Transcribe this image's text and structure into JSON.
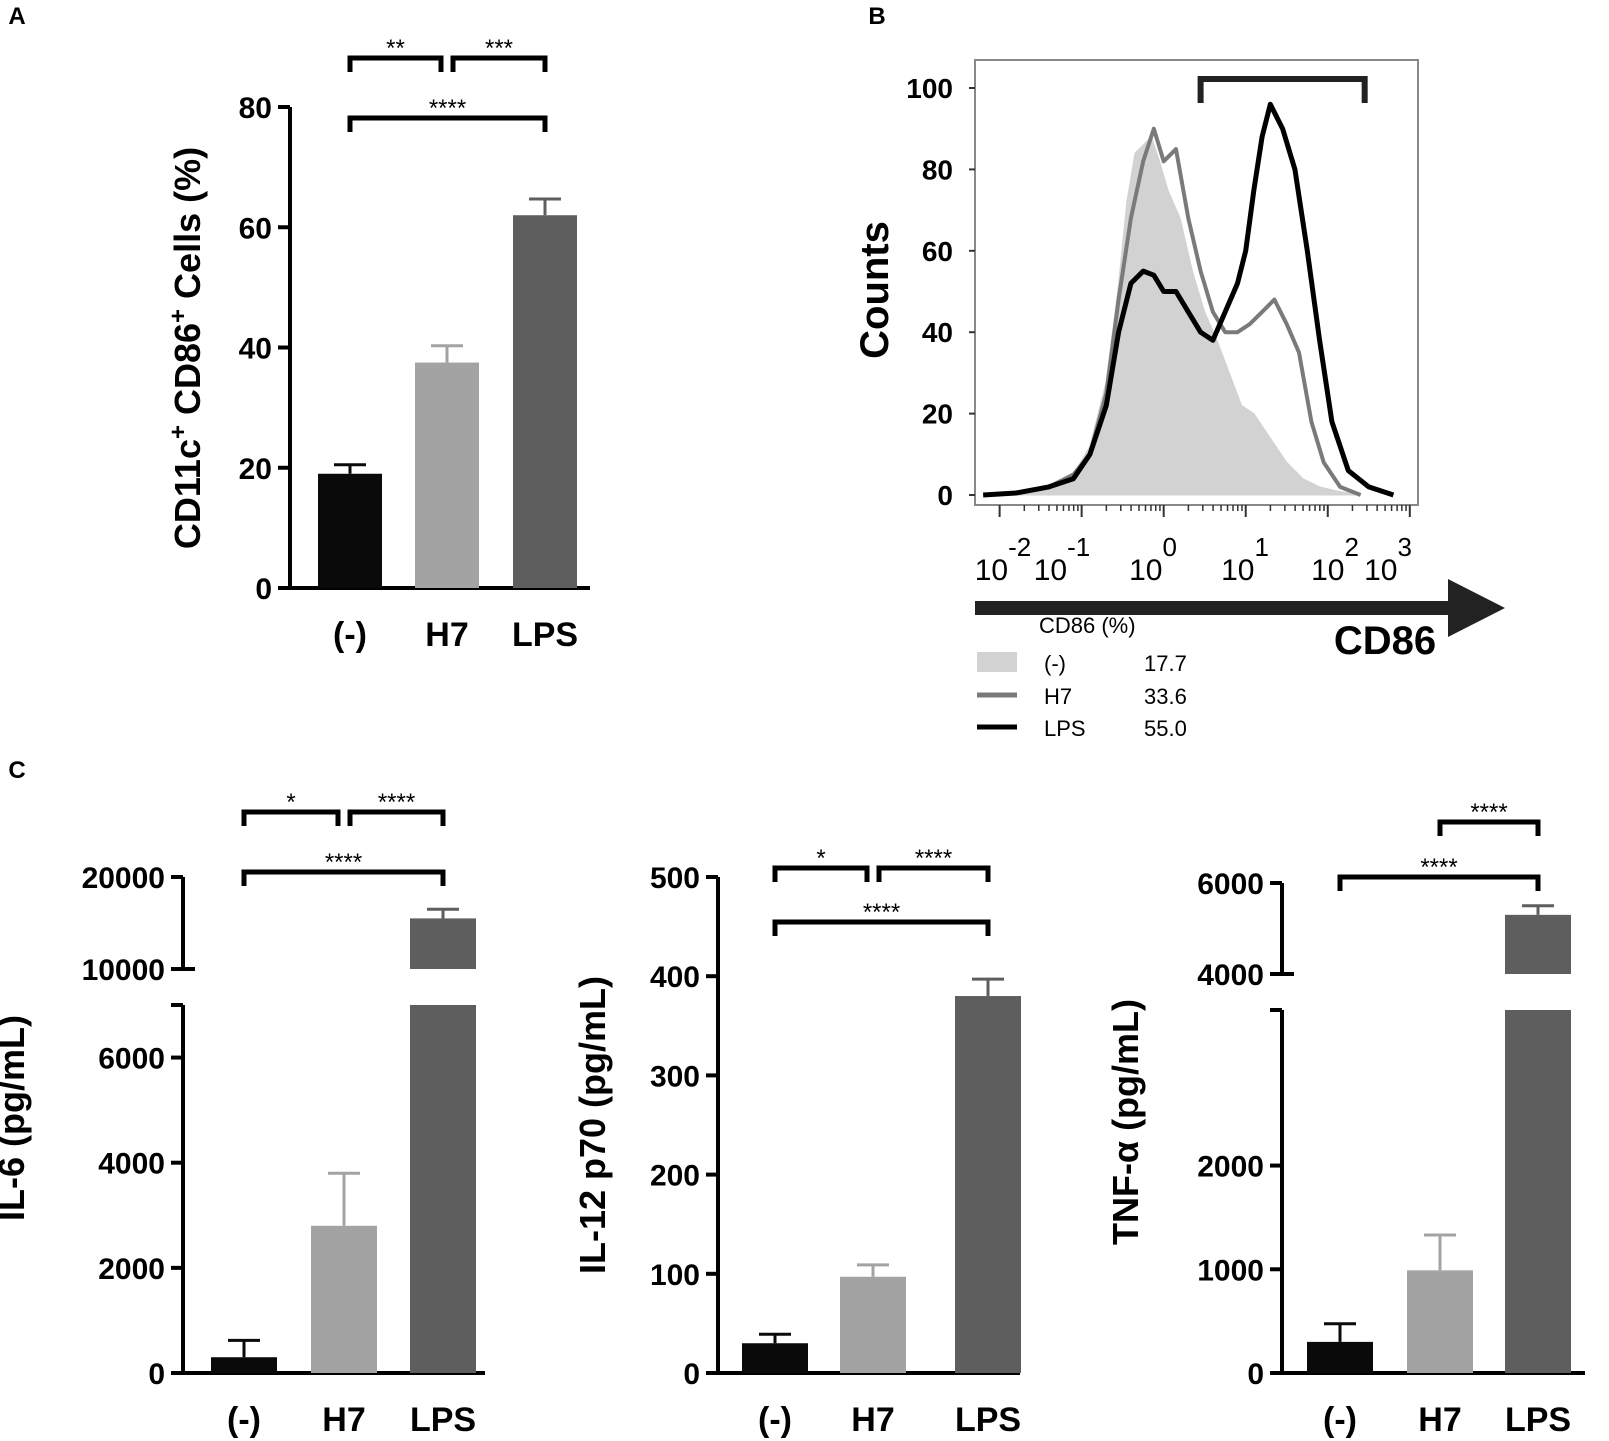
{
  "figure": {
    "title": ""
  },
  "colors": {
    "neg": "#0a0a0a",
    "h7": "#a3a3a3",
    "lps": "#5e5e5e",
    "fill_neg": "#d2d2d2",
    "axis": "#111111"
  },
  "chart_data": [
    {
      "panel": "A",
      "type": "bar",
      "title": "",
      "xlabel": "",
      "ylabel_parts": {
        "a": "CD11c",
        "a_sup": "+",
        "b": " CD86",
        "b_sup": "+",
        "c": " Cells (%)"
      },
      "categories": [
        "(-)",
        "H7",
        "LPS"
      ],
      "values": [
        19,
        37.5,
        62
      ],
      "errors": [
        1.5,
        2.8,
        2.7
      ],
      "ylim": [
        0,
        80
      ],
      "yticks": [
        0,
        20,
        40,
        60,
        80
      ],
      "ytick_labels": [
        "0",
        "20",
        "40",
        "60",
        "80"
      ],
      "significance": [
        {
          "from": 0,
          "to": 1,
          "label": "**",
          "level": 1
        },
        {
          "from": 1,
          "to": 2,
          "label": "***",
          "level": 1
        },
        {
          "from": 0,
          "to": 2,
          "label": "****",
          "level": 0
        }
      ]
    },
    {
      "panel": "B",
      "type": "line",
      "title": "",
      "xlabel": "CD86",
      "ylabel": "Counts",
      "x_scale": "log10",
      "xlim": [
        -2.3,
        3.1
      ],
      "ylim": [
        0,
        100
      ],
      "yticks": [
        0,
        20,
        40,
        60,
        80,
        100
      ],
      "ytick_labels": [
        "0",
        "20",
        "40",
        "60",
        "80",
        "100"
      ],
      "xtick_base": "10",
      "xtick_exponents": [
        "-2",
        "-1",
        "0",
        "1",
        "2",
        "3"
      ],
      "gate": {
        "x_start": 0.45,
        "x_end": 2.45,
        "label": ""
      },
      "legend_header": "CD86 (%)",
      "legend": [
        {
          "label": "(-)",
          "value": "17.7",
          "style": "filled"
        },
        {
          "label": "H7",
          "value": "33.6",
          "style": "gray-line"
        },
        {
          "label": "LPS",
          "value": "55.0",
          "style": "black-line"
        }
      ],
      "series": [
        {
          "name": "(-)",
          "x": [
            -2.2,
            -1.8,
            -1.4,
            -1.1,
            -0.9,
            -0.7,
            -0.55,
            -0.45,
            -0.35,
            -0.25,
            -0.15,
            -0.05,
            0.05,
            0.2,
            0.35,
            0.5,
            0.65,
            0.8,
            0.95,
            1.1,
            1.3,
            1.5,
            1.7,
            1.9,
            2.1,
            2.4
          ],
          "values": [
            0,
            0.5,
            2,
            5,
            12,
            28,
            52,
            72,
            84,
            86,
            88,
            82,
            75,
            68,
            55,
            45,
            38,
            30,
            22,
            20,
            14,
            8,
            4,
            2,
            1,
            0
          ]
        },
        {
          "name": "H7",
          "x": [
            -2.2,
            -1.8,
            -1.4,
            -1.1,
            -0.9,
            -0.7,
            -0.55,
            -0.4,
            -0.25,
            -0.12,
            0.0,
            0.15,
            0.3,
            0.45,
            0.6,
            0.75,
            0.9,
            1.05,
            1.2,
            1.35,
            1.5,
            1.65,
            1.8,
            1.95,
            2.15,
            2.4
          ],
          "values": [
            0,
            0.5,
            2,
            5,
            10,
            25,
            48,
            68,
            82,
            90,
            82,
            85,
            68,
            55,
            45,
            40,
            40,
            42,
            45,
            48,
            42,
            35,
            18,
            8,
            2,
            0
          ]
        },
        {
          "name": "LPS",
          "x": [
            -2.2,
            -1.8,
            -1.4,
            -1.1,
            -0.9,
            -0.7,
            -0.55,
            -0.4,
            -0.25,
            -0.12,
            0.0,
            0.15,
            0.3,
            0.45,
            0.6,
            0.75,
            0.9,
            1.0,
            1.1,
            1.2,
            1.3,
            1.45,
            1.6,
            1.75,
            1.9,
            2.05,
            2.25,
            2.5,
            2.8
          ],
          "values": [
            0,
            0.5,
            2,
            4,
            10,
            22,
            40,
            52,
            55,
            54,
            50,
            50,
            45,
            40,
            38,
            45,
            52,
            60,
            75,
            88,
            96,
            90,
            80,
            60,
            38,
            18,
            6,
            2,
            0
          ]
        }
      ]
    },
    {
      "panel": "C1",
      "type": "bar",
      "title": "",
      "xlabel": "",
      "ylabel": "IL-6 (pg/mL)",
      "categories": [
        "(-)",
        "H7",
        "LPS"
      ],
      "values": [
        300,
        2800,
        15500
      ],
      "errors": [
        320,
        1000,
        1000
      ],
      "broken_axis": true,
      "lower_range": [
        0,
        7000
      ],
      "upper_range": [
        10000,
        20000
      ],
      "yticks_lower": [
        0,
        2000,
        4000,
        6000
      ],
      "ytick_labels_lower": [
        "0",
        "2000",
        "4000",
        "6000"
      ],
      "yticks_upper": [
        10000,
        20000
      ],
      "ytick_labels_upper": [
        "10000",
        "20000"
      ],
      "significance": [
        {
          "from": 0,
          "to": 1,
          "label": "*",
          "level": 1
        },
        {
          "from": 1,
          "to": 2,
          "label": "****",
          "level": 1
        },
        {
          "from": 0,
          "to": 2,
          "label": "****",
          "level": 0
        }
      ]
    },
    {
      "panel": "C2",
      "type": "bar",
      "title": "",
      "xlabel": "",
      "ylabel": "IL-12 p70 (pg/mL)",
      "categories": [
        "(-)",
        "H7",
        "LPS"
      ],
      "values": [
        30,
        97,
        380
      ],
      "errors": [
        9,
        12,
        17
      ],
      "ylim": [
        0,
        500
      ],
      "yticks": [
        0,
        100,
        200,
        300,
        400,
        500
      ],
      "ytick_labels": [
        "0",
        "100",
        "200",
        "300",
        "400",
        "500"
      ],
      "significance": [
        {
          "from": 0,
          "to": 1,
          "label": "*",
          "level": 1
        },
        {
          "from": 1,
          "to": 2,
          "label": "****",
          "level": 1
        },
        {
          "from": 0,
          "to": 2,
          "label": "****",
          "level": 0
        }
      ]
    },
    {
      "panel": "C3",
      "type": "bar",
      "title": "",
      "xlabel": "",
      "ylabel": "TNF-α (pg/mL)",
      "categories": [
        "(-)",
        "H7",
        "LPS"
      ],
      "values": [
        300,
        990,
        5300
      ],
      "errors": [
        175,
        340,
        200
      ],
      "broken_axis": true,
      "lower_range": [
        0,
        3500
      ],
      "upper_range": [
        4000,
        6000
      ],
      "yticks_lower": [
        0,
        1000,
        2000
      ],
      "ytick_labels_lower": [
        "0",
        "1000",
        "2000"
      ],
      "yticks_upper": [
        4000,
        6000
      ],
      "ytick_labels_upper": [
        "4000",
        "6000"
      ],
      "significance": [
        {
          "from": 1,
          "to": 2,
          "label": "****",
          "level": 1
        },
        {
          "from": 0,
          "to": 2,
          "label": "****",
          "level": 0
        }
      ]
    }
  ]
}
